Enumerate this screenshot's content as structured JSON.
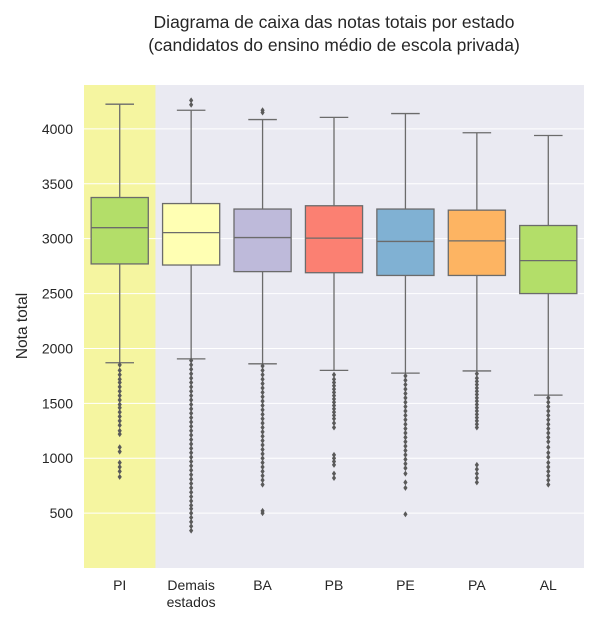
{
  "chart_data": {
    "type": "box",
    "title_lines": [
      "Diagrama de caixa das notas totais por estado",
      "(candidatos do ensino médio de escola privada)"
    ],
    "xlabel": "",
    "ylabel": "Nota total",
    "ylim": [
      0,
      4400
    ],
    "yticks": [
      500,
      1000,
      1500,
      2000,
      2500,
      3000,
      3500,
      4000
    ],
    "grid": true,
    "highlight_category": "PI",
    "highlight_color": "#f5f5a0",
    "background_color": "#eaeaf2",
    "categories": [
      {
        "label": [
          "PI"
        ],
        "color": "#b3de69",
        "whisker_low": 1870,
        "q1": 2770,
        "median": 3100,
        "q3": 3375,
        "whisker_high": 4225,
        "outliers": [
          1850,
          1800,
          1760,
          1720,
          1690,
          1650,
          1610,
          1570,
          1530,
          1490,
          1460,
          1420,
          1380,
          1340,
          1300,
          1250,
          1220,
          1100,
          1060,
          960,
          920,
          880,
          830
        ]
      },
      {
        "label": [
          "Demais",
          "estados"
        ],
        "color": "#ffffb3",
        "whisker_low": 1905,
        "q1": 2760,
        "median": 3055,
        "q3": 3320,
        "whisker_high": 4170,
        "outliers": [
          4260,
          4220,
          1890,
          1850,
          1810,
          1770,
          1730,
          1690,
          1650,
          1610,
          1570,
          1530,
          1490,
          1450,
          1410,
          1370,
          1330,
          1290,
          1250,
          1210,
          1170,
          1130,
          1090,
          1050,
          1010,
          970,
          930,
          890,
          850,
          810,
          770,
          730,
          690,
          650,
          610,
          570,
          540,
          500,
          460,
          420,
          380,
          340
        ]
      },
      {
        "label": [
          "BA"
        ],
        "color": "#bebada",
        "whisker_low": 1860,
        "q1": 2700,
        "median": 3010,
        "q3": 3270,
        "whisker_high": 4085,
        "outliers": [
          4170,
          4150,
          1840,
          1800,
          1760,
          1720,
          1680,
          1640,
          1600,
          1560,
          1520,
          1480,
          1440,
          1400,
          1360,
          1320,
          1280,
          1240,
          1200,
          1160,
          1120,
          1080,
          1040,
          1000,
          960,
          920,
          880,
          840,
          800,
          760,
          520,
          500
        ]
      },
      {
        "label": [
          "PB"
        ],
        "color": "#fb8072",
        "whisker_low": 1800,
        "q1": 2690,
        "median": 3005,
        "q3": 3300,
        "whisker_high": 4105,
        "outliers": [
          1760,
          1720,
          1690,
          1660,
          1630,
          1600,
          1570,
          1540,
          1510,
          1480,
          1450,
          1420,
          1390,
          1360,
          1320,
          1280,
          1030,
          1000,
          970,
          940,
          860,
          820
        ]
      },
      {
        "label": [
          "PE"
        ],
        "color": "#80b1d3",
        "whisker_low": 1775,
        "q1": 2665,
        "median": 2975,
        "q3": 3270,
        "whisker_high": 4140,
        "outliers": [
          1750,
          1710,
          1670,
          1630,
          1590,
          1550,
          1510,
          1470,
          1430,
          1390,
          1350,
          1310,
          1270,
          1230,
          1190,
          1150,
          1110,
          1070,
          1030,
          990,
          950,
          910,
          860,
          780,
          730,
          490
        ]
      },
      {
        "label": [
          "PA"
        ],
        "color": "#fdb462",
        "whisker_low": 1795,
        "q1": 2665,
        "median": 2980,
        "q3": 3260,
        "whisker_high": 3965,
        "outliers": [
          1770,
          1730,
          1700,
          1670,
          1640,
          1610,
          1580,
          1550,
          1520,
          1490,
          1460,
          1430,
          1400,
          1370,
          1340,
          1310,
          1280,
          940,
          900,
          860,
          820,
          780
        ]
      },
      {
        "label": [
          "AL"
        ],
        "color": "#b3de69",
        "whisker_low": 1575,
        "q1": 2500,
        "median": 2800,
        "q3": 3120,
        "whisker_high": 3940,
        "outliers": [
          1550,
          1510,
          1470,
          1430,
          1390,
          1350,
          1310,
          1270,
          1230,
          1190,
          1150,
          1100,
          1050,
          1010,
          960,
          920,
          880,
          840,
          800,
          760
        ]
      }
    ]
  }
}
